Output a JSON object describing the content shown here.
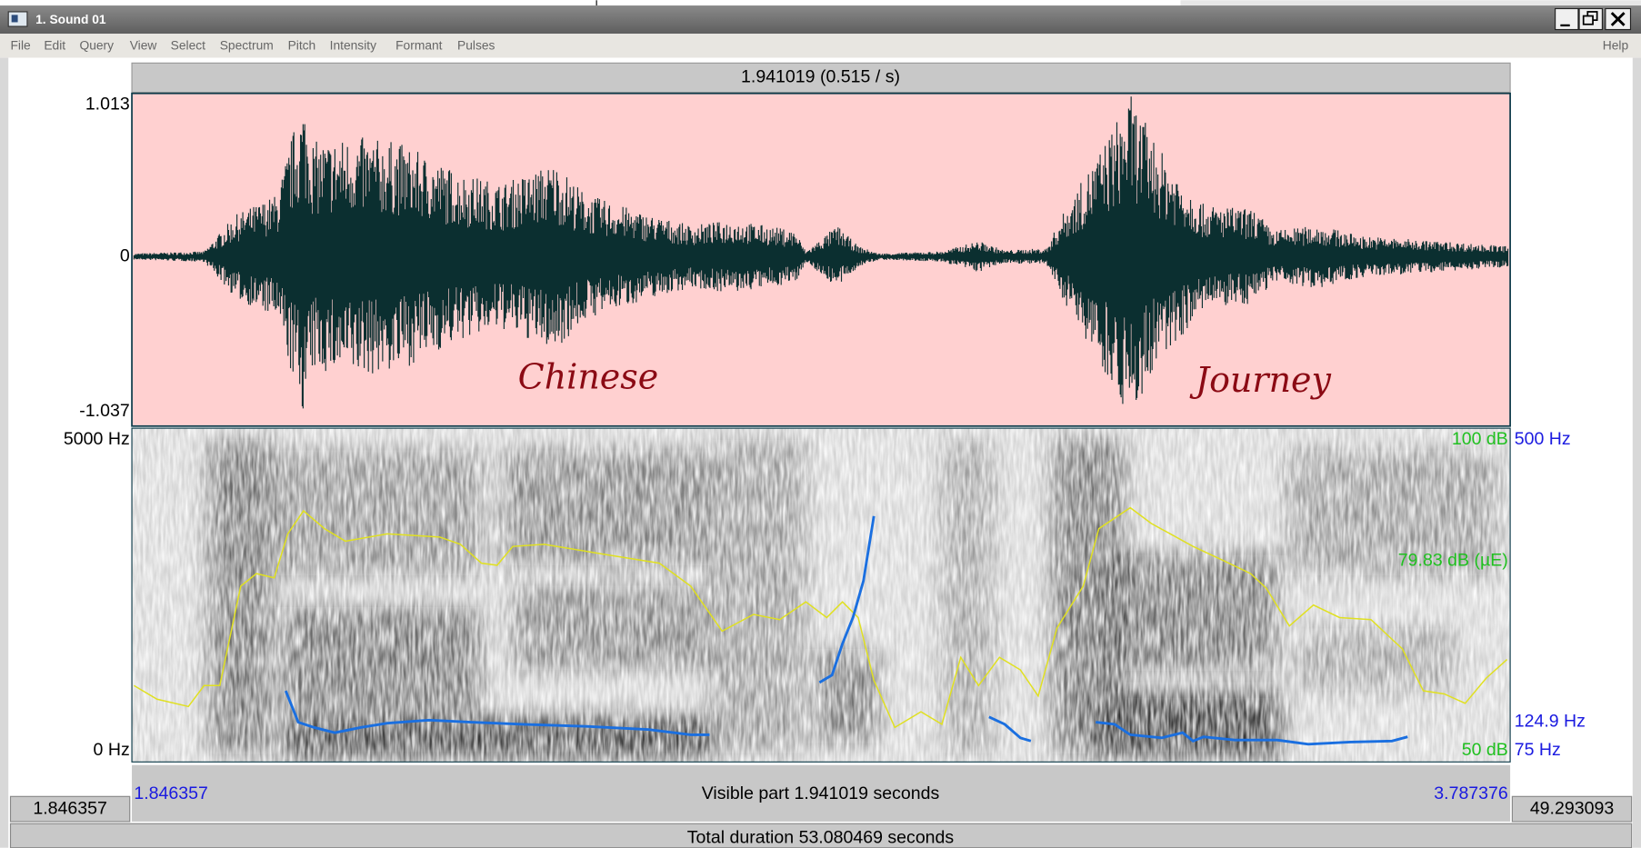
{
  "window": {
    "title": "1. Sound 01"
  },
  "menu": {
    "items": [
      "File",
      "Edit",
      "Query",
      "View",
      "Select",
      "Spectrum",
      "Pitch",
      "Intensity",
      "Formant",
      "Pulses"
    ],
    "help": "Help"
  },
  "selection_bar": "1.941019 (0.515 / s)",
  "waveform": {
    "y_max": "1.013",
    "y_zero": "0",
    "y_min": "-1.037",
    "annotations": [
      "Chinese",
      "Journey"
    ]
  },
  "spectrogram": {
    "freq_top": "5000 Hz",
    "freq_bottom": "0 Hz",
    "intensity_top": "100 dB",
    "intensity_current": "79.83 dB (µE)",
    "intensity_bottom": "50 dB",
    "pitch_top": "500 Hz",
    "pitch_current": "124.9 Hz",
    "pitch_bottom": "75 Hz"
  },
  "time_bar": {
    "window_start": "1.846357",
    "visible": "Visible part 1.941019 seconds",
    "window_end": "3.787376",
    "left_box": "1.846357",
    "right_box": "49.293093",
    "total": "Total duration 53.080469 seconds"
  }
}
